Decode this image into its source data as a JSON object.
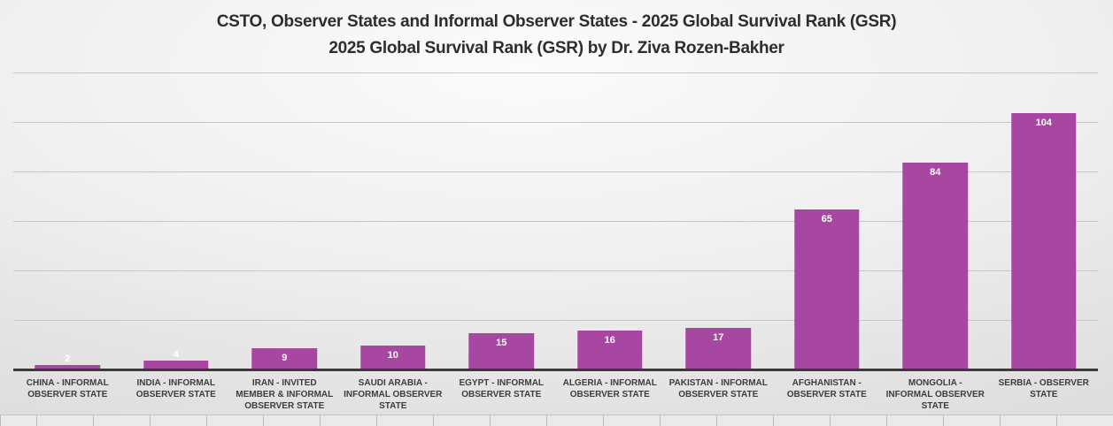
{
  "chart_data": {
    "type": "bar",
    "title": "CSTO, Observer States and Informal Observer States - 2025 Global Survival Rank (GSR)",
    "subtitle": "2025 Global Survival Rank (GSR) by Dr. Ziva Rozen-Bakher",
    "categories": [
      "CHINA - INFORMAL OBSERVER STATE",
      "INDIA - INFORMAL OBSERVER STATE",
      "IRAN - INVITED MEMBER & INFORMAL OBSERVER STATE",
      "SAUDI ARABIA - INFORMAL OBSERVER STATE",
      "EGYPT - INFORMAL OBSERVER STATE",
      "ALGERIA - INFORMAL OBSERVER STATE",
      "PAKISTAN - INFORMAL OBSERVER STATE",
      "AFGHANISTAN - OBSERVER STATE",
      "MONGOLIA - INFORMAL OBSERVER STATE",
      "SERBIA - OBSERVER STATE"
    ],
    "values": [
      2,
      4,
      9,
      10,
      15,
      16,
      17,
      65,
      84,
      104
    ],
    "xlabel": "",
    "ylabel": "",
    "ylim": [
      0,
      120
    ],
    "gridline_step": 20,
    "grid": true,
    "legend_position": "none",
    "data_labels": "inside-end",
    "colors": {
      "bar": "#a847a1",
      "bar_value_label": "#ffffff",
      "gridline": "#c7c7c7",
      "axis_line": "#3a3a3a",
      "category_label": "#3d3d3d",
      "title": "#2d2d2d"
    }
  }
}
